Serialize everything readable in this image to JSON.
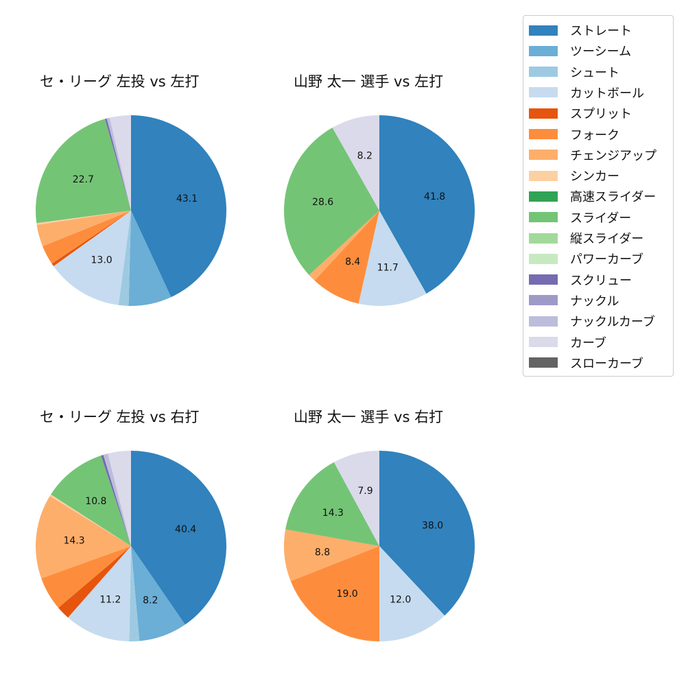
{
  "legend": {
    "items": [
      {
        "label": "ストレート",
        "color": "#3182bd"
      },
      {
        "label": "ツーシーム",
        "color": "#6baed6"
      },
      {
        "label": "シュート",
        "color": "#9ecae1"
      },
      {
        "label": "カットボール",
        "color": "#c6dbef"
      },
      {
        "label": "スプリット",
        "color": "#e6550d"
      },
      {
        "label": "フォーク",
        "color": "#fd8d3c"
      },
      {
        "label": "チェンジアップ",
        "color": "#fdae6b"
      },
      {
        "label": "シンカー",
        "color": "#fdd0a2"
      },
      {
        "label": "高速スライダー",
        "color": "#31a354"
      },
      {
        "label": "スライダー",
        "color": "#74c476"
      },
      {
        "label": "縦スライダー",
        "color": "#a1d99b"
      },
      {
        "label": "パワーカーブ",
        "color": "#c7e9c0"
      },
      {
        "label": "スクリュー",
        "color": "#756bb1"
      },
      {
        "label": "ナックル",
        "color": "#9e9ac8"
      },
      {
        "label": "ナックルカーブ",
        "color": "#bcbddc"
      },
      {
        "label": "カーブ",
        "color": "#dadaeb"
      },
      {
        "label": "スローカーブ",
        "color": "#636363"
      }
    ]
  },
  "chart_data": [
    {
      "type": "pie",
      "title": "セ・リーグ 左投 vs 左打",
      "start_angle": 90,
      "direction": "clockwise",
      "slices": [
        {
          "label": "ストレート",
          "value": 43.1,
          "show_label": true
        },
        {
          "label": "ツーシーム",
          "value": 7.3,
          "show_label": false
        },
        {
          "label": "シュート",
          "value": 1.7,
          "show_label": false
        },
        {
          "label": "カットボール",
          "value": 13.0,
          "show_label": true
        },
        {
          "label": "スプリット",
          "value": 0.5,
          "show_label": false
        },
        {
          "label": "フォーク",
          "value": 3.3,
          "show_label": false
        },
        {
          "label": "チェンジアップ",
          "value": 3.7,
          "show_label": false
        },
        {
          "label": "シンカー",
          "value": 0.3,
          "show_label": false
        },
        {
          "label": "スライダー",
          "value": 22.7,
          "show_label": true
        },
        {
          "label": "スクリュー",
          "value": 0.3,
          "show_label": false
        },
        {
          "label": "ナックルカーブ",
          "value": 0.5,
          "show_label": false
        },
        {
          "label": "カーブ",
          "value": 3.6,
          "show_label": false
        }
      ]
    },
    {
      "type": "pie",
      "title": "山野 太一 選手 vs 左打",
      "start_angle": 90,
      "direction": "clockwise",
      "slices": [
        {
          "label": "ストレート",
          "value": 41.8,
          "show_label": true
        },
        {
          "label": "カットボール",
          "value": 11.7,
          "show_label": true
        },
        {
          "label": "フォーク",
          "value": 8.4,
          "show_label": true
        },
        {
          "label": "チェンジアップ",
          "value": 1.3,
          "show_label": false
        },
        {
          "label": "スライダー",
          "value": 28.6,
          "show_label": true
        },
        {
          "label": "カーブ",
          "value": 8.2,
          "show_label": true
        }
      ]
    },
    {
      "type": "pie",
      "title": "セ・リーグ 左投 vs 右打",
      "start_angle": 90,
      "direction": "clockwise",
      "slices": [
        {
          "label": "ストレート",
          "value": 40.4,
          "show_label": true
        },
        {
          "label": "ツーシーム",
          "value": 8.2,
          "show_label": true
        },
        {
          "label": "シュート",
          "value": 1.7,
          "show_label": false
        },
        {
          "label": "カットボール",
          "value": 11.2,
          "show_label": true
        },
        {
          "label": "スプリット",
          "value": 2.3,
          "show_label": false
        },
        {
          "label": "フォーク",
          "value": 5.7,
          "show_label": false
        },
        {
          "label": "チェンジアップ",
          "value": 14.3,
          "show_label": true
        },
        {
          "label": "シンカー",
          "value": 0.3,
          "show_label": false
        },
        {
          "label": "スライダー",
          "value": 10.8,
          "show_label": true
        },
        {
          "label": "スクリュー",
          "value": 0.4,
          "show_label": false
        },
        {
          "label": "ナックルカーブ",
          "value": 0.8,
          "show_label": false
        },
        {
          "label": "カーブ",
          "value": 3.9,
          "show_label": false
        }
      ]
    },
    {
      "type": "pie",
      "title": "山野 太一 選手 vs 右打",
      "start_angle": 90,
      "direction": "clockwise",
      "slices": [
        {
          "label": "ストレート",
          "value": 38.0,
          "show_label": true
        },
        {
          "label": "カットボール",
          "value": 12.0,
          "show_label": true
        },
        {
          "label": "フォーク",
          "value": 19.0,
          "show_label": true
        },
        {
          "label": "チェンジアップ",
          "value": 8.8,
          "show_label": true
        },
        {
          "label": "スライダー",
          "value": 14.3,
          "show_label": true
        },
        {
          "label": "カーブ",
          "value": 7.9,
          "show_label": true
        }
      ]
    }
  ]
}
